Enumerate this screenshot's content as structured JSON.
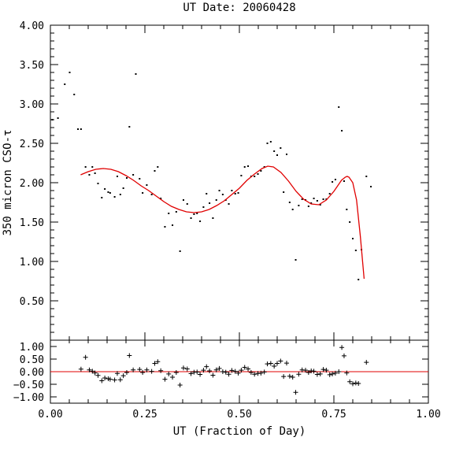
{
  "chart_data": [
    {
      "type": "scatter",
      "title": "UT Date: 20060428",
      "xlabel": "",
      "ylabel": "350 micron CSO-τ",
      "xlim": [
        0.0,
        1.0
      ],
      "ylim": [
        0.0,
        4.0
      ],
      "y_ticks": [
        "0.50",
        "1.00",
        "1.50",
        "2.00",
        "2.50",
        "3.00",
        "3.50",
        "4.00"
      ],
      "grid": false,
      "series": [
        {
          "style": "points",
          "color": "#000000",
          "x": [
            0.005,
            0.02,
            0.038,
            0.051,
            0.063,
            0.073,
            0.081,
            0.093,
            0.103,
            0.111,
            0.118,
            0.126,
            0.136,
            0.144,
            0.153,
            0.158,
            0.17,
            0.177,
            0.185,
            0.193,
            0.202,
            0.209,
            0.219,
            0.226,
            0.236,
            0.244,
            0.255,
            0.268,
            0.276,
            0.284,
            0.292,
            0.303,
            0.313,
            0.323,
            0.333,
            0.343,
            0.352,
            0.362,
            0.372,
            0.38,
            0.388,
            0.396,
            0.405,
            0.413,
            0.421,
            0.43,
            0.439,
            0.447,
            0.456,
            0.464,
            0.472,
            0.48,
            0.489,
            0.497,
            0.505,
            0.514,
            0.523,
            0.531,
            0.54,
            0.549,
            0.557,
            0.566,
            0.574,
            0.583,
            0.592,
            0.6,
            0.609,
            0.617,
            0.625,
            0.633,
            0.641,
            0.649,
            0.657,
            0.666,
            0.675,
            0.683,
            0.69,
            0.697,
            0.706,
            0.714,
            0.722,
            0.73,
            0.739,
            0.746,
            0.754,
            0.763,
            0.771,
            0.777,
            0.784,
            0.792,
            0.8,
            0.808,
            0.815,
            0.823,
            0.836,
            0.848
          ],
          "y": [
            2.8,
            2.82,
            3.25,
            3.4,
            3.12,
            2.68,
            2.68,
            2.2,
            2.1,
            2.2,
            2.12,
            1.99,
            1.81,
            1.92,
            1.88,
            1.87,
            1.82,
            2.08,
            1.85,
            1.93,
            2.06,
            2.71,
            2.1,
            3.38,
            2.05,
            1.87,
            1.97,
            1.85,
            2.15,
            2.2,
            1.8,
            1.44,
            1.61,
            1.46,
            1.63,
            1.13,
            1.78,
            1.73,
            1.55,
            1.6,
            1.61,
            1.51,
            1.69,
            1.86,
            1.74,
            1.55,
            1.78,
            1.9,
            1.85,
            1.78,
            1.73,
            1.9,
            1.86,
            1.87,
            2.09,
            2.2,
            2.21,
            2.08,
            2.08,
            2.11,
            2.15,
            2.2,
            2.5,
            2.52,
            2.4,
            2.35,
            2.44,
            1.88,
            2.36,
            1.75,
            1.66,
            1.02,
            1.71,
            1.79,
            1.78,
            1.7,
            1.74,
            1.8,
            1.77,
            1.72,
            1.79,
            1.79,
            1.86,
            2.01,
            2.04,
            2.96,
            2.66,
            2.02,
            1.66,
            1.5,
            1.29,
            1.14,
            0.77,
            1.15,
            2.08,
            1.95
          ]
        },
        {
          "style": "line",
          "color": "#e00000",
          "x": [
            0.08,
            0.1,
            0.12,
            0.14,
            0.16,
            0.18,
            0.2,
            0.22,
            0.24,
            0.26,
            0.28,
            0.3,
            0.32,
            0.34,
            0.36,
            0.38,
            0.4,
            0.42,
            0.44,
            0.46,
            0.48,
            0.5,
            0.52,
            0.54,
            0.56,
            0.575,
            0.59,
            0.61,
            0.63,
            0.65,
            0.67,
            0.69,
            0.71,
            0.73,
            0.75,
            0.76,
            0.77,
            0.78,
            0.785,
            0.79,
            0.8,
            0.81,
            0.82,
            0.83
          ],
          "y": [
            2.1,
            2.14,
            2.17,
            2.18,
            2.17,
            2.14,
            2.09,
            2.03,
            1.96,
            1.9,
            1.83,
            1.76,
            1.7,
            1.66,
            1.63,
            1.62,
            1.63,
            1.66,
            1.71,
            1.77,
            1.85,
            1.93,
            2.03,
            2.11,
            2.18,
            2.21,
            2.2,
            2.13,
            2.02,
            1.89,
            1.79,
            1.73,
            1.72,
            1.78,
            1.89,
            1.96,
            2.03,
            2.07,
            2.08,
            2.07,
            2.0,
            1.78,
            1.32,
            0.78
          ]
        }
      ]
    },
    {
      "type": "scatter",
      "title": "",
      "xlabel": "UT (Fraction of Day)",
      "ylabel": "",
      "xlim": [
        0.0,
        1.0
      ],
      "ylim": [
        -1.25,
        1.25
      ],
      "x_ticks": [
        "0.00",
        "0.25",
        "0.50",
        "0.75",
        "1.00"
      ],
      "y_ticks": [
        "−1.00",
        "−0.50",
        "0.00",
        "0.50",
        "1.00"
      ],
      "grid": false,
      "zero_line_color": "#e00000",
      "series": [
        {
          "style": "crosses",
          "color": "#000000",
          "x": [
            0.081,
            0.093,
            0.103,
            0.111,
            0.118,
            0.126,
            0.136,
            0.144,
            0.153,
            0.158,
            0.17,
            0.177,
            0.185,
            0.193,
            0.202,
            0.209,
            0.219,
            0.236,
            0.244,
            0.255,
            0.268,
            0.276,
            0.284,
            0.292,
            0.303,
            0.313,
            0.323,
            0.333,
            0.343,
            0.352,
            0.362,
            0.372,
            0.38,
            0.388,
            0.396,
            0.405,
            0.413,
            0.421,
            0.43,
            0.439,
            0.447,
            0.456,
            0.464,
            0.472,
            0.48,
            0.489,
            0.497,
            0.505,
            0.514,
            0.523,
            0.531,
            0.54,
            0.549,
            0.557,
            0.566,
            0.574,
            0.583,
            0.592,
            0.6,
            0.609,
            0.617,
            0.625,
            0.633,
            0.641,
            0.649,
            0.657,
            0.666,
            0.675,
            0.683,
            0.69,
            0.697,
            0.706,
            0.714,
            0.722,
            0.73,
            0.739,
            0.746,
            0.754,
            0.763,
            0.771,
            0.777,
            0.784,
            0.792,
            0.8,
            0.808,
            0.815,
            0.836
          ],
          "y": [
            0.1,
            0.57,
            0.07,
            0.02,
            -0.05,
            -0.15,
            -0.36,
            -0.25,
            -0.28,
            -0.3,
            -0.33,
            -0.07,
            -0.32,
            -0.16,
            -0.03,
            0.64,
            0.07,
            0.09,
            -0.03,
            0.07,
            0.01,
            0.33,
            0.4,
            0.04,
            -0.3,
            -0.09,
            -0.22,
            -0.03,
            -0.53,
            0.15,
            0.11,
            -0.08,
            -0.02,
            -0.01,
            -0.11,
            0.06,
            0.2,
            0.03,
            -0.14,
            0.07,
            0.13,
            0.0,
            -0.02,
            -0.1,
            0.05,
            0.01,
            -0.06,
            0.06,
            0.17,
            0.11,
            -0.03,
            -0.1,
            -0.07,
            -0.06,
            -0.01,
            0.31,
            0.33,
            0.22,
            0.33,
            0.42,
            -0.19,
            0.34,
            -0.18,
            -0.22,
            -0.82,
            -0.1,
            0.07,
            0.06,
            -0.03,
            0.03,
            0.02,
            -0.11,
            -0.09,
            0.09,
            0.06,
            -0.12,
            -0.09,
            -0.06,
            0.0,
            0.96,
            0.63,
            -0.05,
            -0.4,
            -0.48,
            -0.45,
            -0.47,
            0.37
          ]
        }
      ]
    }
  ]
}
